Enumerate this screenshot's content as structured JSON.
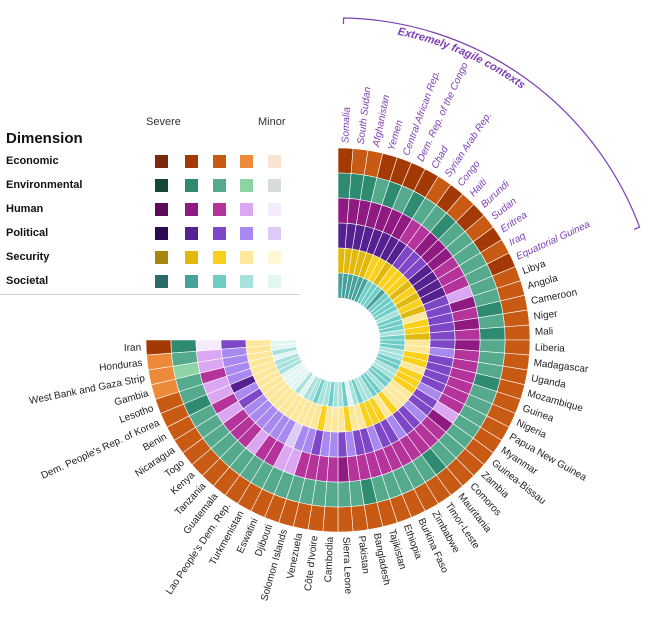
{
  "chart_data": {
    "type": "radial-heatmap",
    "title": "",
    "group_label": "Extremely fragile contexts",
    "legend": {
      "title": "Dimension",
      "severe_label": "Severe",
      "minor_label": "Minor",
      "dimensions": [
        {
          "name": "Economic",
          "colors": [
            "#7a2a0a",
            "#a33a06",
            "#c85a14",
            "#ec8a3a",
            "#fbe3d2"
          ]
        },
        {
          "name": "Environmental",
          "colors": [
            "#154732",
            "#2e8a70",
            "#55a98c",
            "#8dd3a3",
            "#d6dcd9"
          ]
        },
        {
          "name": "Human",
          "colors": [
            "#5c0b5b",
            "#8e1a82",
            "#b4349b",
            "#dca7f2",
            "#f4ebfb"
          ]
        },
        {
          "name": "Political",
          "colors": [
            "#2a0a52",
            "#55208f",
            "#7d47c8",
            "#a989f0",
            "#dccbf6"
          ]
        },
        {
          "name": "Security",
          "colors": [
            "#a8860b",
            "#e2b90a",
            "#fad01a",
            "#fde79a",
            "#fff6d2"
          ]
        },
        {
          "name": "Societal",
          "colors": [
            "#286b68",
            "#47a19b",
            "#6fcdc7",
            "#a7e1dc",
            "#e3f5f3"
          ]
        }
      ]
    },
    "contexts": [
      {
        "name": "Somalia",
        "extreme": true,
        "severity": [
          1,
          1,
          1,
          1,
          1,
          1
        ]
      },
      {
        "name": "South Sudan",
        "extreme": true,
        "severity": [
          2,
          1,
          1,
          1,
          1,
          1
        ]
      },
      {
        "name": "Afghanistan",
        "extreme": true,
        "severity": [
          2,
          1,
          1,
          1,
          1,
          1
        ]
      },
      {
        "name": "Yemen",
        "extreme": true,
        "severity": [
          1,
          2,
          1,
          1,
          1,
          1
        ]
      },
      {
        "name": "Central African Rep.",
        "extreme": true,
        "severity": [
          1,
          1,
          1,
          1,
          1,
          1
        ]
      },
      {
        "name": "Dem. Rep. of the Congo",
        "extreme": true,
        "severity": [
          1,
          2,
          1,
          1,
          2,
          1
        ]
      },
      {
        "name": "Chad",
        "extreme": true,
        "severity": [
          1,
          1,
          1,
          1,
          2,
          2
        ]
      },
      {
        "name": "Syrian Arab Rep.",
        "extreme": true,
        "severity": [
          2,
          2,
          2,
          1,
          1,
          2
        ]
      },
      {
        "name": "Congo",
        "extreme": true,
        "severity": [
          1,
          2,
          2,
          2,
          2,
          2
        ]
      },
      {
        "name": "Haiti",
        "extreme": true,
        "severity": [
          2,
          1,
          1,
          2,
          2,
          1
        ]
      },
      {
        "name": "Burundi",
        "extreme": true,
        "severity": [
          1,
          2,
          1,
          2,
          2,
          2
        ]
      },
      {
        "name": "Sudan",
        "extreme": true,
        "severity": [
          2,
          2,
          1,
          1,
          1,
          2
        ]
      },
      {
        "name": "Eritrea",
        "extreme": true,
        "severity": [
          1,
          2,
          2,
          1,
          2,
          2
        ]
      },
      {
        "name": "Iraq",
        "extreme": true,
        "severity": [
          2,
          2,
          2,
          1,
          1,
          2
        ]
      },
      {
        "name": "Equatorial Guinea",
        "extreme": true,
        "severity": [
          1,
          2,
          2,
          1,
          2,
          3
        ]
      },
      {
        "name": "Libya",
        "extreme": false,
        "severity": [
          2,
          2,
          3,
          2,
          1,
          2
        ]
      },
      {
        "name": "Angola",
        "extreme": false,
        "severity": [
          2,
          2,
          1,
          2,
          3,
          2
        ]
      },
      {
        "name": "Cameroon",
        "extreme": false,
        "severity": [
          2,
          1,
          2,
          2,
          2,
          2
        ]
      },
      {
        "name": "Niger",
        "extreme": false,
        "severity": [
          2,
          2,
          1,
          2,
          2,
          3
        ]
      },
      {
        "name": "Mali",
        "extreme": false,
        "severity": [
          2,
          1,
          2,
          2,
          1,
          2
        ]
      },
      {
        "name": "Liberia",
        "extreme": false,
        "severity": [
          2,
          2,
          1,
          2,
          3,
          2
        ]
      },
      {
        "name": "Madagascar",
        "extreme": false,
        "severity": [
          2,
          2,
          2,
          3,
          3,
          2
        ]
      },
      {
        "name": "Uganda",
        "extreme": false,
        "severity": [
          2,
          2,
          2,
          2,
          2,
          3
        ]
      },
      {
        "name": "Mozambique",
        "extreme": false,
        "severity": [
          2,
          1,
          2,
          2,
          2,
          3
        ]
      },
      {
        "name": "Guinea",
        "extreme": false,
        "severity": [
          2,
          2,
          2,
          2,
          3,
          2
        ]
      },
      {
        "name": "Nigeria",
        "extreme": false,
        "severity": [
          2,
          2,
          2,
          2,
          2,
          2
        ]
      },
      {
        "name": "Papua New Guinea",
        "extreme": false,
        "severity": [
          2,
          2,
          2,
          3,
          2,
          3
        ]
      },
      {
        "name": "Myanmar",
        "extreme": false,
        "severity": [
          2,
          2,
          3,
          2,
          2,
          3
        ]
      },
      {
        "name": "Guinea-Bissau",
        "extreme": false,
        "severity": [
          2,
          2,
          1,
          2,
          3,
          2
        ]
      },
      {
        "name": "Zambia",
        "extreme": false,
        "severity": [
          2,
          2,
          2,
          3,
          3,
          2
        ]
      },
      {
        "name": "Comoros",
        "extreme": false,
        "severity": [
          2,
          2,
          2,
          2,
          3,
          3
        ]
      },
      {
        "name": "Mauritania",
        "extreme": false,
        "severity": [
          2,
          1,
          2,
          2,
          2,
          2
        ]
      },
      {
        "name": "Timor-Leste",
        "extreme": false,
        "severity": [
          2,
          2,
          2,
          3,
          3,
          2
        ]
      },
      {
        "name": "Zimbabwe",
        "extreme": false,
        "severity": [
          2,
          2,
          2,
          2,
          2,
          3
        ]
      },
      {
        "name": "Burkina Faso",
        "extreme": false,
        "severity": [
          2,
          2,
          2,
          2,
          2,
          3
        ]
      },
      {
        "name": "Ethiopia",
        "extreme": false,
        "severity": [
          2,
          2,
          2,
          3,
          2,
          2
        ]
      },
      {
        "name": "Tajikistan",
        "extreme": false,
        "severity": [
          2,
          2,
          2,
          2,
          3,
          3
        ]
      },
      {
        "name": "Bangladesh",
        "extreme": false,
        "severity": [
          2,
          1,
          2,
          2,
          3,
          4
        ]
      },
      {
        "name": "Pakistan",
        "extreme": false,
        "severity": [
          2,
          2,
          2,
          3,
          2,
          2
        ]
      },
      {
        "name": "Sierra Leone",
        "extreme": false,
        "severity": [
          2,
          2,
          1,
          2,
          3,
          3
        ]
      },
      {
        "name": "Cambodia",
        "extreme": false,
        "severity": [
          2,
          2,
          2,
          3,
          3,
          3
        ]
      },
      {
        "name": "Côte d'Ivoire",
        "extreme": false,
        "severity": [
          2,
          2,
          2,
          3,
          3,
          2
        ]
      },
      {
        "name": "Venezuela",
        "extreme": false,
        "severity": [
          2,
          2,
          2,
          2,
          2,
          3
        ]
      },
      {
        "name": "Solomon Islands",
        "extreme": false,
        "severity": [
          2,
          2,
          2,
          3,
          3,
          3
        ]
      },
      {
        "name": "Djibouti",
        "extreme": false,
        "severity": [
          2,
          2,
          3,
          3,
          3,
          2
        ]
      },
      {
        "name": "Eswatini",
        "extreme": false,
        "severity": [
          2,
          2,
          3,
          4,
          3,
          3
        ]
      },
      {
        "name": "Turkmenistan",
        "extreme": false,
        "severity": [
          2,
          2,
          2,
          3,
          3,
          3
        ]
      },
      {
        "name": "Lao People's Dem. Rep.",
        "extreme": false,
        "severity": [
          2,
          2,
          2,
          3,
          3,
          4
        ]
      },
      {
        "name": "Guatemala",
        "extreme": false,
        "severity": [
          2,
          2,
          3,
          3,
          3,
          3
        ]
      },
      {
        "name": "Tanzania",
        "extreme": false,
        "severity": [
          2,
          2,
          2,
          3,
          3,
          4
        ]
      },
      {
        "name": "Kenya",
        "extreme": false,
        "severity": [
          2,
          2,
          2,
          3,
          3,
          4
        ]
      },
      {
        "name": "Togo",
        "extreme": false,
        "severity": [
          2,
          2,
          2,
          3,
          3,
          4
        ]
      },
      {
        "name": "Nicaragua",
        "extreme": false,
        "severity": [
          2,
          2,
          3,
          2,
          3,
          4
        ]
      },
      {
        "name": "Benin",
        "extreme": false,
        "severity": [
          2,
          2,
          2,
          3,
          3,
          3
        ]
      },
      {
        "name": "Dem. People's Rep. of Korea",
        "extreme": false,
        "severity": [
          2,
          1,
          3,
          1,
          3,
          3
        ]
      },
      {
        "name": "Lesotho",
        "extreme": false,
        "severity": [
          2,
          2,
          3,
          3,
          3,
          3
        ]
      },
      {
        "name": "Gambia",
        "extreme": false,
        "severity": [
          3,
          2,
          2,
          3,
          3,
          4
        ]
      },
      {
        "name": "West Bank and Gaza Strip",
        "extreme": false,
        "severity": [
          3,
          3,
          3,
          3,
          3,
          3
        ]
      },
      {
        "name": "Honduras",
        "extreme": false,
        "severity": [
          3,
          2,
          3,
          3,
          3,
          4
        ]
      },
      {
        "name": "Iran",
        "extreme": false,
        "severity": [
          1,
          1,
          4,
          2,
          3,
          4
        ]
      }
    ]
  }
}
